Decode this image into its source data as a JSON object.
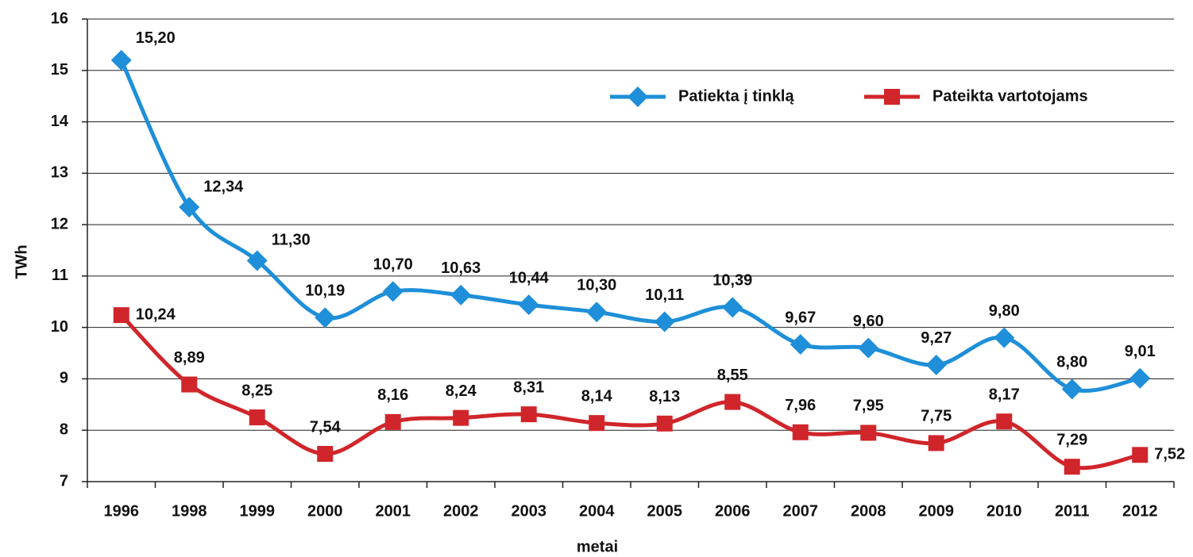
{
  "chart_data": {
    "type": "line",
    "categories": [
      "1996",
      "1998",
      "1999",
      "2000",
      "2001",
      "2002",
      "2003",
      "2004",
      "2005",
      "2006",
      "2007",
      "2008",
      "2009",
      "2010",
      "2011",
      "2012"
    ],
    "series": [
      {
        "name": "Patiekta į tinklą",
        "color": "#1e8fd8",
        "marker": "diamond",
        "values": [
          15.2,
          12.34,
          11.3,
          10.19,
          10.7,
          10.63,
          10.44,
          10.3,
          10.11,
          10.39,
          9.67,
          9.6,
          9.27,
          9.8,
          8.8,
          9.01
        ],
        "value_labels": [
          "15,20",
          "12,34",
          "11,30",
          "10,19",
          "10,70",
          "10,63",
          "10,44",
          "10,30",
          "10,11",
          "10,39",
          "9,67",
          "9,60",
          "9,27",
          "9,80",
          "8,80",
          "9,01"
        ]
      },
      {
        "name": "Pateikta vartotojams",
        "color": "#d0262b",
        "marker": "square",
        "values": [
          10.24,
          8.89,
          8.25,
          7.54,
          8.16,
          8.24,
          8.31,
          8.14,
          8.13,
          8.55,
          7.96,
          7.95,
          7.75,
          8.17,
          7.29,
          7.52
        ],
        "value_labels": [
          "10,24",
          "8,89",
          "8,25",
          "7,54",
          "8,16",
          "8,24",
          "8,31",
          "8,14",
          "8,13",
          "8,55",
          "7,96",
          "7,95",
          "7,75",
          "8,17",
          "7,29",
          "7,52"
        ]
      }
    ],
    "ylabel": "TWh",
    "xlabel": "metai",
    "ylim": [
      7,
      16
    ],
    "yticks": [
      7,
      8,
      9,
      10,
      11,
      12,
      13,
      14,
      15,
      16
    ],
    "grid": true,
    "legend": "top-right"
  }
}
